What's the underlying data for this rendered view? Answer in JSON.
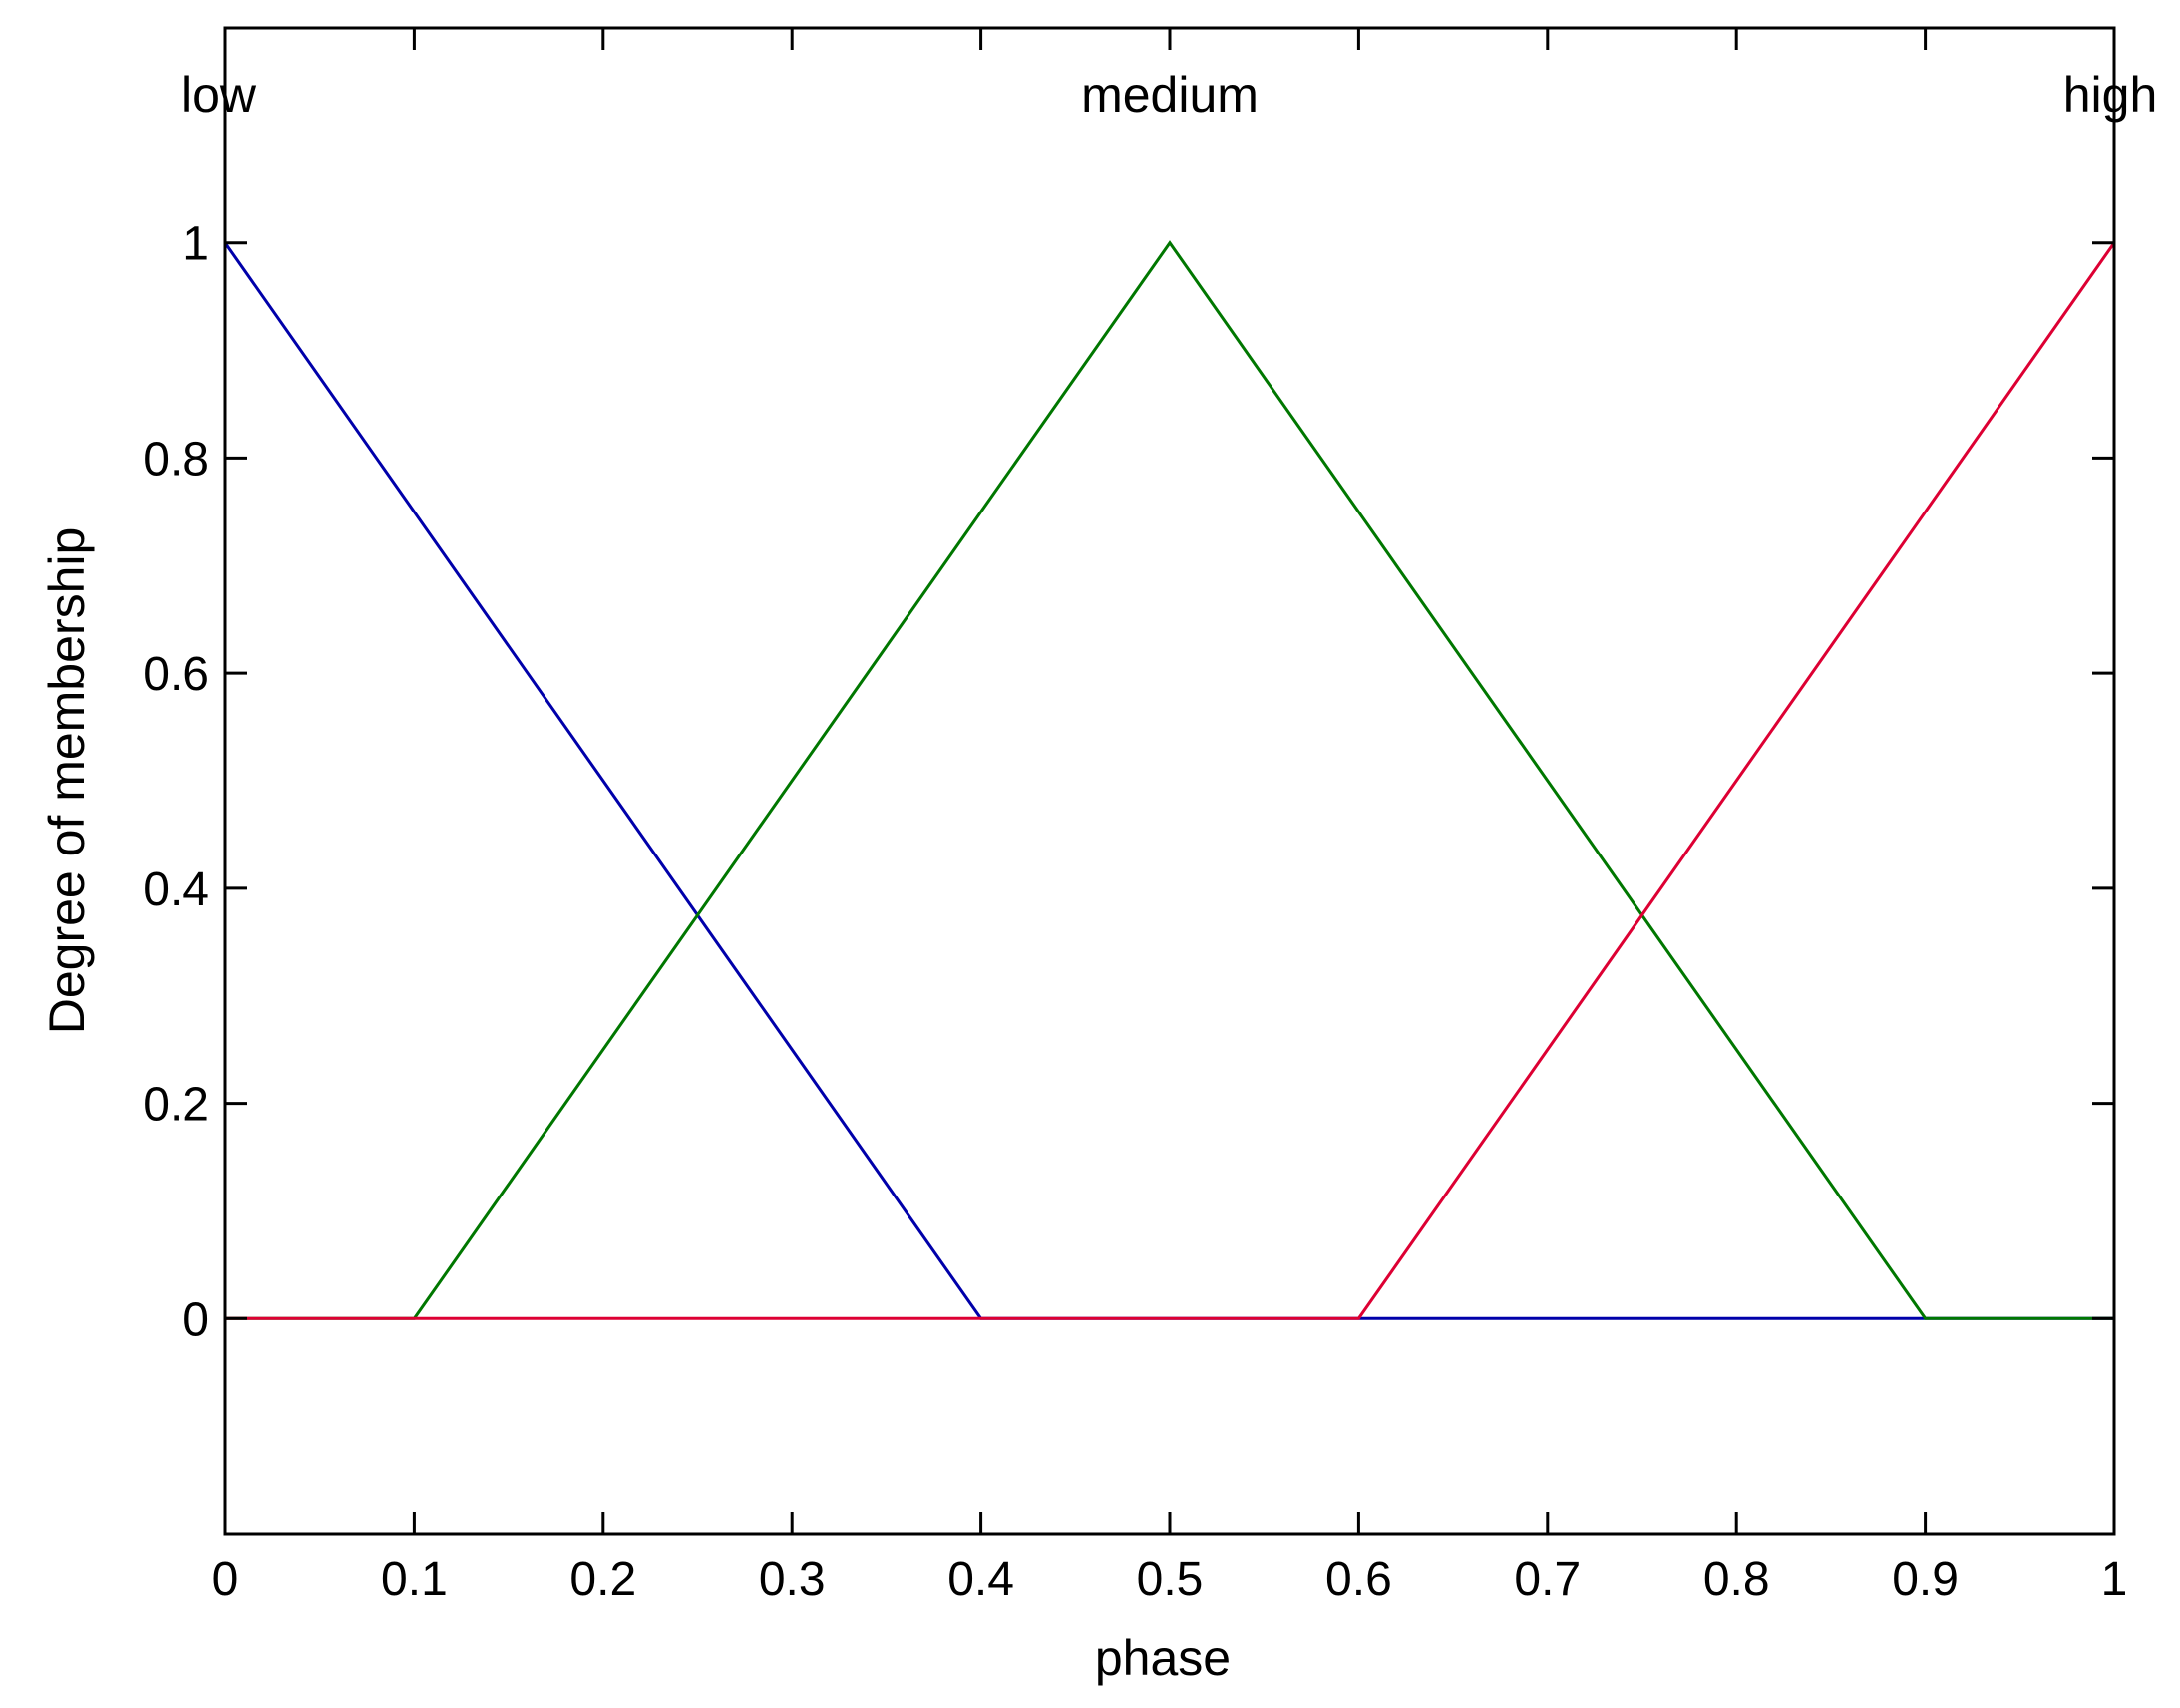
{
  "chart_data": {
    "type": "line",
    "title": "",
    "xlabel": "phase",
    "ylabel": "Degree of membership",
    "xlim": [
      0,
      1
    ],
    "ylim": [
      -0.2,
      1.2
    ],
    "xticks": [
      0,
      0.1,
      0.2,
      0.3,
      0.4,
      0.5,
      0.6,
      0.7,
      0.8,
      0.9,
      1
    ],
    "xtick_labels": [
      "0",
      "0.1",
      "0.2",
      "0.3",
      "0.4",
      "0.5",
      "0.6",
      "0.7",
      "0.8",
      "0.9",
      "1"
    ],
    "yticks": [
      0,
      0.2,
      0.4,
      0.6,
      0.8,
      1
    ],
    "ytick_labels": [
      "0",
      "0.2",
      "0.4",
      "0.6",
      "0.8",
      "1"
    ],
    "grid": false,
    "legend": "none",
    "series": [
      {
        "name": "low",
        "color": "#0000aa",
        "x": [
          0,
          0.4,
          1
        ],
        "y": [
          1,
          0,
          0
        ],
        "label_x": 0,
        "label_align": "start"
      },
      {
        "name": "medium",
        "color": "#007700",
        "x": [
          0,
          0.1,
          0.5,
          0.9,
          1
        ],
        "y": [
          0,
          0,
          1,
          0,
          0
        ],
        "label_x": 0.5,
        "label_align": "middle"
      },
      {
        "name": "high",
        "color": "#dd0033",
        "x": [
          0,
          0.6,
          1
        ],
        "y": [
          0,
          0,
          1
        ],
        "label_x": 1,
        "label_align": "middle"
      }
    ]
  }
}
